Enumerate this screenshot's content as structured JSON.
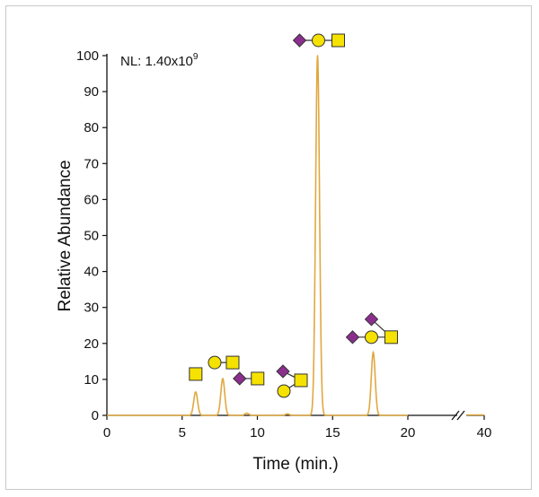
{
  "chart_data": {
    "type": "line",
    "title": "",
    "annotation": {
      "text": "NL: 1.40x10",
      "superscript": "9"
    },
    "xlabel": "Time (min.)",
    "ylabel": "Relative Abundance",
    "xlim": [
      0,
      40
    ],
    "ylim": [
      0,
      100
    ],
    "x_ticks": [
      "0",
      "5",
      "10",
      "15",
      "20",
      "40"
    ],
    "y_ticks": [
      "0",
      "10",
      "20",
      "30",
      "40",
      "50",
      "60",
      "70",
      "80",
      "90",
      "100"
    ],
    "axis_break": "between 20 and 40",
    "grid": false,
    "line_color": "#e0a840",
    "series": [
      {
        "peaks": [
          {
            "time": 5.9,
            "height": 6.5,
            "glycan": "square"
          },
          {
            "time": 7.7,
            "height": 10.2,
            "glycan": "circle-square"
          },
          {
            "time": 9.3,
            "height": 0.6,
            "glycan": "diamond-square"
          },
          {
            "time": 12.0,
            "height": 0.4,
            "glycan": "diamond-square-circle"
          },
          {
            "time": 14.0,
            "height": 100,
            "glycan": "diamond-circle-square"
          },
          {
            "time": 17.7,
            "height": 17.5,
            "glycan": "diamond-diamond-circle-square"
          }
        ]
      }
    ],
    "glycan_colors": {
      "square": "#f5e200",
      "circle": "#f5e200",
      "diamond": "#8b2f8e"
    }
  }
}
